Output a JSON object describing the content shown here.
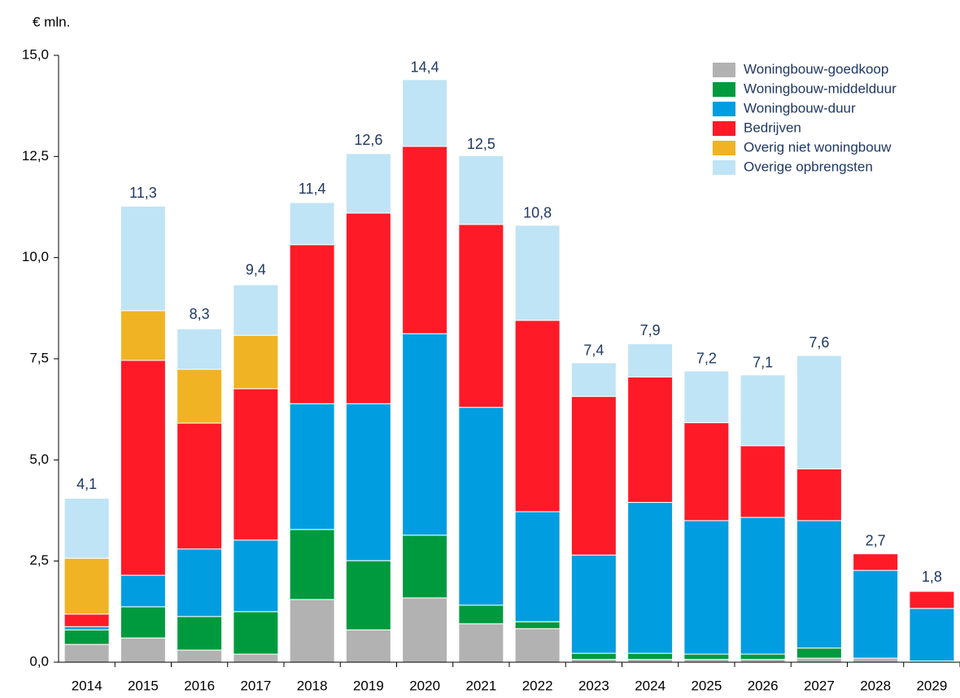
{
  "chart_data": {
    "type": "stacked_bar",
    "y_label": "€ mln.",
    "categories": [
      "2014",
      "2015",
      "2016",
      "2017",
      "2018",
      "2019",
      "2020",
      "2021",
      "2022",
      "2023",
      "2024",
      "2025",
      "2026",
      "2027",
      "2028",
      "2029"
    ],
    "series": [
      {
        "name": "Woningbouw-goedkoop",
        "color": "#b2b2b2",
        "values": [
          0.44,
          0.6,
          0.3,
          0.2,
          1.55,
          0.8,
          1.59,
          0.95,
          0.83,
          0.07,
          0.07,
          0.07,
          0.07,
          0.1,
          0.1,
          0.03
        ]
      },
      {
        "name": "Woningbouw-middelduur",
        "color": "#009a3e",
        "values": [
          0.36,
          0.77,
          0.83,
          1.05,
          1.73,
          1.71,
          1.55,
          0.46,
          0.17,
          0.15,
          0.15,
          0.13,
          0.13,
          0.25,
          0,
          0
        ]
      },
      {
        "name": "Woningbouw-duur",
        "color": "#009ee0",
        "values": [
          0.08,
          0.78,
          1.67,
          1.77,
          3.11,
          3.88,
          4.98,
          4.89,
          2.72,
          2.43,
          3.73,
          3.3,
          3.38,
          3.15,
          2.17,
          1.3
        ]
      },
      {
        "name": "Bedrijven",
        "color": "#ff1a27",
        "values": [
          0.31,
          5.31,
          3.11,
          3.74,
          3.93,
          4.71,
          4.63,
          4.52,
          4.73,
          3.92,
          3.1,
          2.42,
          1.77,
          1.28,
          0.41,
          0.42
        ]
      },
      {
        "name": "Overig niet woningbouw",
        "color": "#f0b323",
        "values": [
          1.38,
          1.23,
          1.33,
          1.32,
          0,
          0,
          0,
          0,
          0,
          0,
          0,
          0,
          0,
          0,
          0,
          0
        ]
      },
      {
        "name": "Overige opbrengsten",
        "color": "#bfe4f5",
        "values": [
          1.48,
          2.58,
          1.0,
          1.25,
          1.04,
          1.47,
          1.65,
          1.7,
          2.35,
          0.83,
          0.82,
          1.28,
          1.75,
          2.8,
          0,
          0
        ]
      }
    ],
    "totals": {
      "values": [
        4.1,
        11.3,
        8.3,
        9.4,
        11.4,
        12.6,
        14.4,
        12.5,
        10.8,
        7.4,
        7.9,
        7.2,
        7.1,
        7.6,
        2.7,
        1.8
      ],
      "value_labels": [
        "4,1",
        "11,3",
        "8,3",
        "9,4",
        "11,4",
        "12,6",
        "14,4",
        "12,5",
        "10,8",
        "7,4",
        "7,9",
        "7,2",
        "7,1",
        "7,6",
        "2,7",
        "1,8"
      ]
    },
    "ylim": [
      0,
      15
    ],
    "yticks": [
      {
        "value": 0,
        "label": "0,0"
      },
      {
        "value": 2.5,
        "label": "2,5"
      },
      {
        "value": 5,
        "label": "5,0"
      },
      {
        "value": 7.5,
        "label": "7,5"
      },
      {
        "value": 10,
        "label": "10,0"
      },
      {
        "value": 12.5,
        "label": "12,5"
      },
      {
        "value": 15,
        "label": "15,0"
      }
    ],
    "legend": "top-right"
  }
}
